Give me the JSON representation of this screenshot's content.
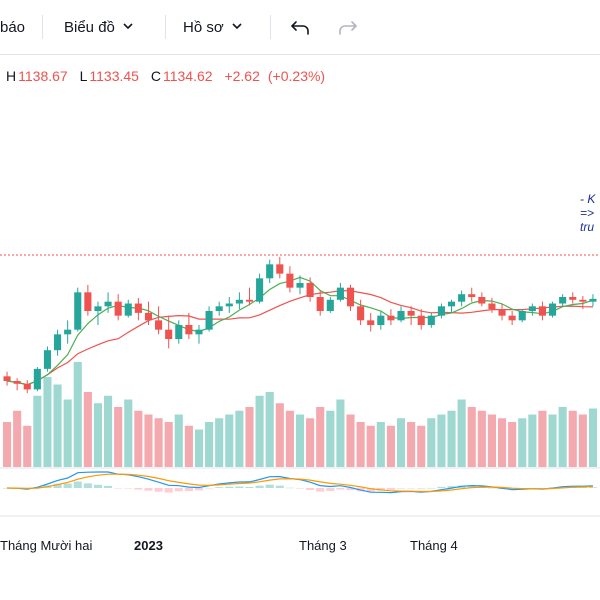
{
  "toolbar": {
    "items": [
      {
        "label": "báo"
      },
      {
        "label": "Biểu đồ",
        "icon": "chevron-down-icon"
      },
      {
        "label": "Hồ sơ",
        "icon": "chevron-down-icon"
      }
    ],
    "undo_icon": "undo-icon",
    "redo_icon": "redo-icon"
  },
  "ohlc": {
    "h_label": "H",
    "h": "1138.67",
    "l_label": "L",
    "l": "1133.45",
    "c_label": "C",
    "c": "1134.62",
    "change": "+2.62",
    "change_pct": "(+0.23%)"
  },
  "note": {
    "line1": "- K",
    "line2": "=>",
    "line3": "tru"
  },
  "chart_data": {
    "type": "candlestick",
    "x_tick_labels": [
      "Tháng Mười hai",
      "2023",
      "Tháng 3",
      "Tháng 4"
    ],
    "colors": {
      "up": "#26a69a",
      "down": "#ef5350",
      "ma_fast": "#4caf50",
      "ma_slow": "#ef5350",
      "vol_up": "#9ed8d1",
      "vol_down": "#f3a9ae",
      "macd": "#2196f3",
      "signal": "#ff9800",
      "reference_line": "#ef5350"
    },
    "reference_line_dotted": true,
    "ohlc_series": [
      [
        980,
        985,
        970,
        975
      ],
      [
        975,
        978,
        965,
        972
      ],
      [
        972,
        976,
        962,
        966
      ],
      [
        966,
        990,
        964,
        988
      ],
      [
        988,
        1012,
        985,
        1008
      ],
      [
        1008,
        1030,
        1002,
        1025
      ],
      [
        1025,
        1040,
        1015,
        1030
      ],
      [
        1030,
        1075,
        1028,
        1070
      ],
      [
        1070,
        1078,
        1045,
        1050
      ],
      [
        1050,
        1060,
        1035,
        1055
      ],
      [
        1055,
        1070,
        1048,
        1060
      ],
      [
        1060,
        1068,
        1040,
        1045
      ],
      [
        1045,
        1062,
        1043,
        1058
      ],
      [
        1058,
        1064,
        1040,
        1048
      ],
      [
        1048,
        1060,
        1035,
        1040
      ],
      [
        1040,
        1055,
        1025,
        1030
      ],
      [
        1030,
        1045,
        1010,
        1020
      ],
      [
        1020,
        1040,
        1015,
        1035
      ],
      [
        1035,
        1048,
        1020,
        1025
      ],
      [
        1025,
        1035,
        1015,
        1030
      ],
      [
        1030,
        1055,
        1028,
        1050
      ],
      [
        1050,
        1060,
        1045,
        1055
      ],
      [
        1055,
        1065,
        1048,
        1058
      ],
      [
        1058,
        1070,
        1052,
        1062
      ],
      [
        1062,
        1075,
        1056,
        1060
      ],
      [
        1060,
        1090,
        1058,
        1085
      ],
      [
        1085,
        1105,
        1080,
        1100
      ],
      [
        1100,
        1108,
        1085,
        1090
      ],
      [
        1090,
        1098,
        1070,
        1075
      ],
      [
        1075,
        1088,
        1068,
        1080
      ],
      [
        1080,
        1086,
        1060,
        1065
      ],
      [
        1065,
        1072,
        1045,
        1050
      ],
      [
        1050,
        1065,
        1048,
        1062
      ],
      [
        1062,
        1080,
        1060,
        1075
      ],
      [
        1075,
        1078,
        1050,
        1055
      ],
      [
        1055,
        1062,
        1035,
        1040
      ],
      [
        1040,
        1048,
        1028,
        1035
      ],
      [
        1035,
        1050,
        1030,
        1045
      ],
      [
        1045,
        1052,
        1035,
        1040
      ],
      [
        1040,
        1055,
        1038,
        1050
      ],
      [
        1050,
        1055,
        1035,
        1045
      ],
      [
        1045,
        1052,
        1030,
        1035
      ],
      [
        1035,
        1048,
        1032,
        1045
      ],
      [
        1045,
        1058,
        1042,
        1055
      ],
      [
        1055,
        1062,
        1048,
        1060
      ],
      [
        1060,
        1072,
        1055,
        1068
      ],
      [
        1068,
        1075,
        1060,
        1065
      ],
      [
        1065,
        1070,
        1055,
        1058
      ],
      [
        1058,
        1064,
        1048,
        1052
      ],
      [
        1052,
        1058,
        1040,
        1045
      ],
      [
        1045,
        1050,
        1035,
        1040
      ],
      [
        1040,
        1052,
        1038,
        1050
      ],
      [
        1050,
        1058,
        1045,
        1055
      ],
      [
        1055,
        1060,
        1040,
        1045
      ],
      [
        1045,
        1060,
        1043,
        1058
      ],
      [
        1058,
        1068,
        1055,
        1065
      ],
      [
        1065,
        1070,
        1058,
        1062
      ],
      [
        1062,
        1066,
        1052,
        1060
      ],
      [
        1060,
        1068,
        1055,
        1063
      ]
    ],
    "volume": [
      60,
      75,
      55,
      95,
      120,
      110,
      90,
      140,
      100,
      85,
      95,
      80,
      90,
      75,
      70,
      65,
      60,
      70,
      55,
      50,
      60,
      65,
      70,
      75,
      80,
      95,
      100,
      85,
      75,
      70,
      65,
      80,
      75,
      90,
      70,
      60,
      55,
      60,
      55,
      65,
      60,
      55,
      65,
      70,
      75,
      90,
      80,
      75,
      70,
      65,
      60,
      65,
      70,
      75,
      70,
      80,
      75,
      70,
      78
    ],
    "up_flags": [
      0,
      0,
      0,
      1,
      1,
      1,
      1,
      1,
      0,
      1,
      1,
      0,
      1,
      0,
      0,
      0,
      0,
      1,
      0,
      1,
      1,
      1,
      1,
      1,
      0,
      1,
      1,
      0,
      0,
      1,
      0,
      0,
      1,
      1,
      0,
      0,
      0,
      1,
      0,
      1,
      0,
      0,
      1,
      1,
      1,
      1,
      0,
      0,
      0,
      0,
      0,
      1,
      1,
      0,
      1,
      1,
      0,
      0,
      1
    ]
  },
  "layout_hint": "candlestick price panel with volume bars and MACD sub-panel"
}
